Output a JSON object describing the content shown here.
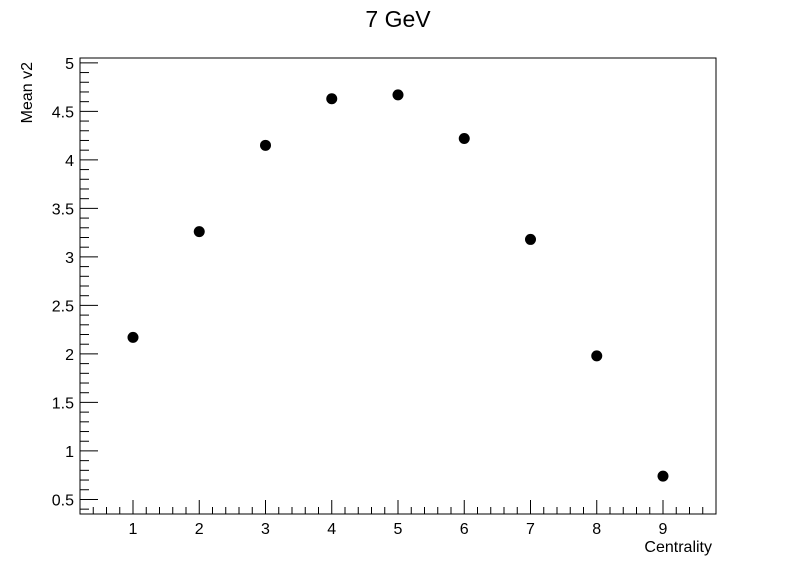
{
  "chart_data": {
    "type": "scatter",
    "title": "7 GeV",
    "xlabel": "Centrality",
    "ylabel": "Mean v2",
    "xlim": [
      0.2,
      9.8
    ],
    "ylim": [
      0.35,
      5.05
    ],
    "x_ticks": [
      1,
      2,
      3,
      4,
      5,
      6,
      7,
      8,
      9
    ],
    "y_ticks": [
      0.5,
      1,
      1.5,
      2,
      2.5,
      3,
      3.5,
      4,
      4.5,
      5
    ],
    "grid": false,
    "legend": "none",
    "marker_color": "#000000",
    "series": [
      {
        "x": [
          1,
          2,
          3,
          4,
          5,
          6,
          7,
          8,
          9
        ],
        "y": [
          2.17,
          3.26,
          4.15,
          4.63,
          4.67,
          4.22,
          3.18,
          1.98,
          0.74
        ]
      }
    ]
  }
}
